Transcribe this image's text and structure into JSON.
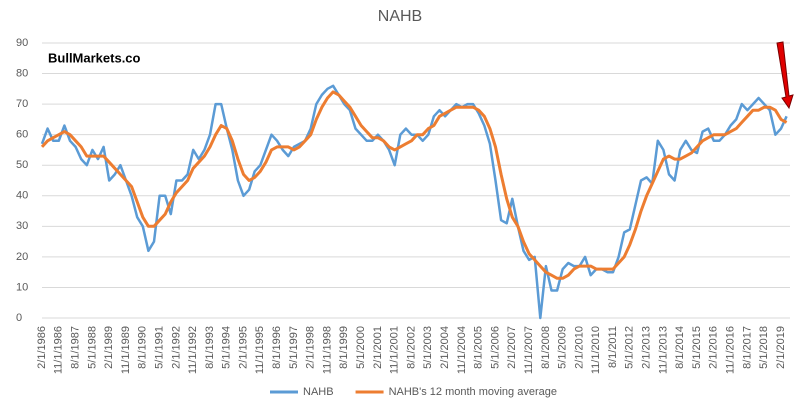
{
  "chart_data": {
    "type": "line",
    "title": "NAHB",
    "watermark": "BullMarkets.co",
    "categories": [
      "2/1/1986",
      null,
      null,
      "11/1/1986",
      null,
      null,
      "8/1/1987",
      null,
      null,
      "5/1/1988",
      null,
      null,
      "2/1/1989",
      null,
      null,
      "11/1/1989",
      null,
      null,
      "8/1/1990",
      null,
      null,
      "5/1/1991",
      null,
      null,
      "2/1/1992",
      null,
      null,
      "11/1/1992",
      null,
      null,
      "8/1/1993",
      null,
      null,
      "5/1/1994",
      null,
      null,
      "2/1/1995",
      null,
      null,
      "11/1/1995",
      null,
      null,
      "8/1/1996",
      null,
      null,
      "5/1/1997",
      null,
      null,
      "2/1/1998",
      null,
      null,
      "11/1/1998",
      null,
      null,
      "8/1/1999",
      null,
      null,
      "5/1/2000",
      null,
      null,
      "2/1/2001",
      null,
      null,
      "11/1/2001",
      null,
      null,
      "8/1/2002",
      null,
      null,
      "5/1/2003",
      null,
      null,
      "2/1/2004",
      null,
      null,
      "11/1/2004",
      null,
      null,
      "8/1/2005",
      null,
      null,
      "5/1/2006",
      null,
      null,
      "2/1/2007",
      null,
      null,
      "11/1/2007",
      null,
      null,
      "8/1/2008",
      null,
      null,
      "5/1/2009",
      null,
      null,
      "2/1/2010",
      null,
      null,
      "11/1/2010",
      null,
      null,
      "8/1/2011",
      null,
      null,
      "5/1/2012",
      null,
      null,
      "2/1/2013",
      null,
      null,
      "11/1/2013",
      null,
      null,
      "8/1/2014",
      null,
      null,
      "5/1/2015",
      null,
      null,
      "2/1/2016",
      null,
      null,
      "11/1/2016",
      null,
      null,
      "8/1/2017",
      null,
      null,
      "5/1/2018",
      null,
      null,
      "2/1/2019",
      null
    ],
    "series": [
      {
        "name": "NAHB",
        "color": "#5b9bd5",
        "width": 2.5,
        "values": [
          57,
          62,
          58,
          58,
          63,
          58,
          56,
          52,
          50,
          55,
          52,
          56,
          45,
          47,
          50,
          45,
          40,
          33,
          30,
          22,
          25,
          40,
          40,
          34,
          45,
          45,
          47,
          55,
          52,
          55,
          60,
          70,
          70,
          62,
          55,
          45,
          40,
          42,
          48,
          50,
          55,
          60,
          58,
          55,
          53,
          56,
          57,
          58,
          62,
          70,
          73,
          75,
          76,
          73,
          70,
          68,
          62,
          60,
          58,
          58,
          60,
          58,
          55,
          50,
          60,
          62,
          60,
          60,
          58,
          60,
          66,
          68,
          66,
          68,
          70,
          69,
          70,
          70,
          67,
          63,
          57,
          45,
          32,
          31,
          39,
          30,
          22,
          19,
          20,
          0,
          17,
          9,
          9,
          16,
          18,
          17,
          17,
          20,
          14,
          16,
          16,
          15,
          15,
          20,
          28,
          29,
          37,
          45,
          46,
          44,
          58,
          55,
          47,
          45,
          55,
          58,
          55,
          54,
          61,
          62,
          58,
          58,
          60,
          63,
          65,
          70,
          68,
          70,
          72,
          70,
          68,
          60,
          62,
          66
        ]
      },
      {
        "name": "NAHB's 12 month moving average",
        "color": "#ed7d31",
        "width": 3,
        "values": [
          56,
          58,
          59,
          60,
          61,
          60,
          58,
          56,
          53,
          53,
          53,
          53,
          51,
          49,
          47,
          45,
          43,
          38,
          33,
          30,
          30,
          32,
          34,
          38,
          41,
          43,
          45,
          49,
          51,
          53,
          56,
          60,
          63,
          62,
          58,
          52,
          47,
          45,
          46,
          48,
          51,
          55,
          56,
          56,
          56,
          55,
          56,
          58,
          60,
          65,
          69,
          72,
          74,
          73,
          71,
          69,
          66,
          63,
          61,
          59,
          59,
          58,
          56,
          55,
          56,
          57,
          58,
          60,
          60,
          62,
          63,
          66,
          67,
          68,
          69,
          69,
          69,
          69,
          68,
          66,
          62,
          56,
          47,
          39,
          33,
          30,
          25,
          21,
          19,
          17,
          15,
          14,
          13,
          13,
          14,
          16,
          17,
          17,
          17,
          16,
          16,
          16,
          16,
          18,
          20,
          24,
          29,
          35,
          40,
          44,
          48,
          52,
          53,
          52,
          52,
          53,
          54,
          56,
          58,
          59,
          60,
          60,
          60,
          61,
          62,
          64,
          66,
          68,
          68,
          69,
          69,
          68,
          65,
          64
        ]
      }
    ],
    "ylim": [
      0,
      90
    ],
    "yticks": [
      0,
      10,
      20,
      30,
      40,
      50,
      60,
      70,
      80,
      90
    ],
    "grid": true,
    "legend": "bottom"
  }
}
